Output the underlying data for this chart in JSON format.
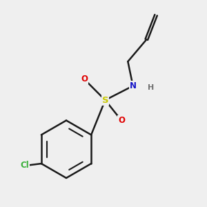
{
  "background_color": "#efefef",
  "bond_color": "#1a1a1a",
  "bond_width": 1.8,
  "atoms": {
    "Cl": {
      "color": "#3ab03a",
      "fontsize": 8.5
    },
    "S": {
      "color": "#c8c800",
      "fontsize": 9.5
    },
    "N": {
      "color": "#1414c8",
      "fontsize": 8.5
    },
    "H": {
      "color": "#707070",
      "fontsize": 8.0
    },
    "O": {
      "color": "#e00000",
      "fontsize": 8.5
    }
  },
  "figsize": [
    3.0,
    3.0
  ],
  "dpi": 100,
  "xlim": [
    0.5,
    6.5
  ],
  "ylim": [
    0.5,
    6.5
  ]
}
